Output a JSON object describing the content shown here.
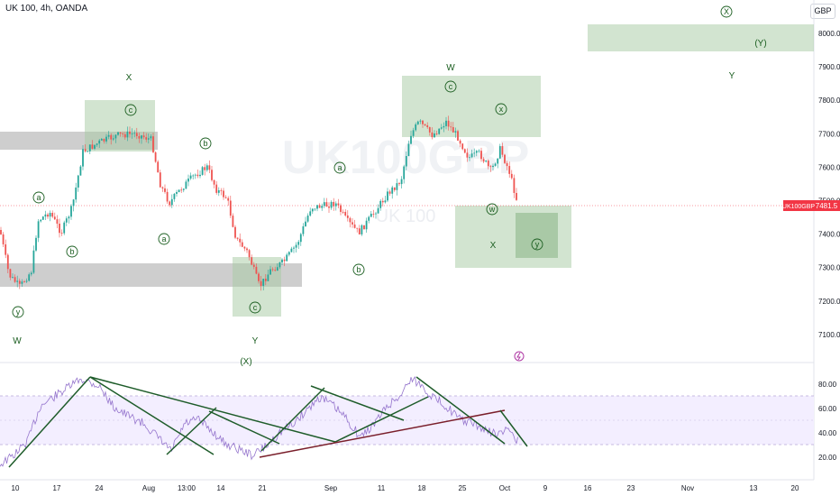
{
  "header": {
    "symbol_title": "UK 100, 4h, OANDA",
    "currency_button": "GBP"
  },
  "watermark": {
    "ticker": "UK100GBP",
    "name": "UK 100"
  },
  "price_scale": {
    "ticks": [
      "8000.0",
      "7900.0",
      "7800.0",
      "7700.0",
      "7600.0",
      "7500.0",
      "7400.0",
      "7300.0",
      "7200.0",
      "7100.0"
    ],
    "last_price_label": "UK100GBP",
    "last_price": "7481.5"
  },
  "rsi_scale": {
    "ticks": [
      "80.00",
      "60.00",
      "40.00",
      "20.00"
    ]
  },
  "time_axis": {
    "labels": [
      "10",
      "17",
      "24",
      "Aug",
      "13:00",
      "14",
      "21",
      "Sep",
      "11",
      "18",
      "25",
      "Oct",
      "9",
      "16",
      "23",
      "Nov",
      "13",
      "20"
    ]
  },
  "wave_labels": {
    "W1": "W",
    "X1": "X",
    "Y1": "Y",
    "X2": "(X)",
    "W2": "W",
    "X3": "X",
    "Y2": "Y",
    "X4": "X",
    "Y3": "(Y)",
    "y1": "y",
    "a1": "a",
    "b1": "b",
    "c1": "c",
    "b2": "b",
    "a2": "a",
    "c2": "c",
    "a3": "a",
    "b3": "b",
    "c3": "c",
    "x1": "x",
    "w1": "w",
    "y2": "y"
  },
  "colors": {
    "up": "#26a69a",
    "down": "#ef5350",
    "zone_green": "#a5c9a1",
    "zone_gray": "#9e9e9e",
    "wave": "#1b5e20",
    "rsi": "#9575cd",
    "rsi_band": "#f3eeff",
    "trend": "#1e5c2a",
    "trend_red": "#7a1f2b",
    "last_price_bg": "#f23645"
  }
}
